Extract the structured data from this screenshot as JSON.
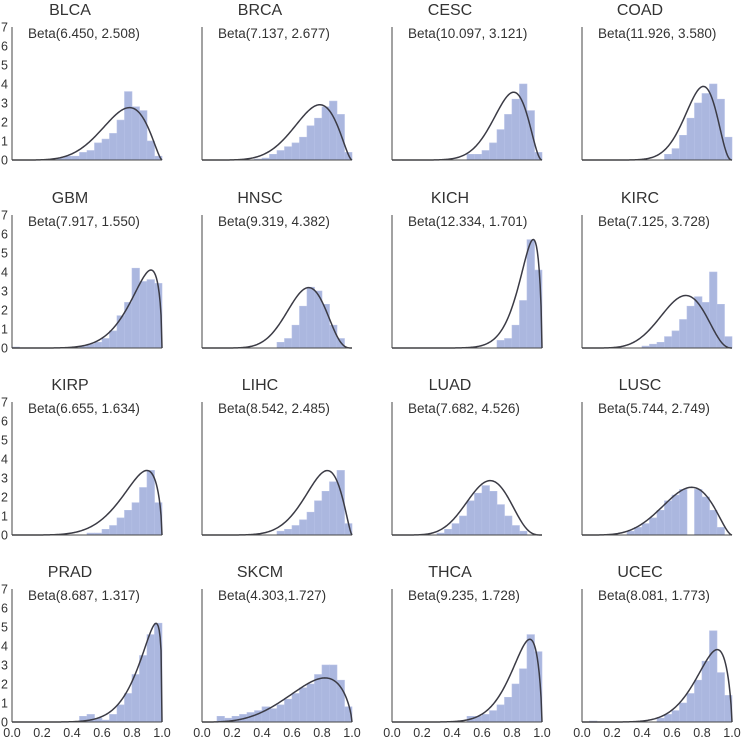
{
  "chart_data": [
    {
      "type": "bar",
      "title": "BLCA",
      "annotation": "Beta(6.450, 2.508)",
      "alpha": 6.45,
      "beta": 2.508,
      "bins": {
        "start": 0.0,
        "width": 0.05,
        "values": [
          0,
          0,
          0,
          0,
          0,
          0,
          0.1,
          0.2,
          0.2,
          0.4,
          0.5,
          0.9,
          1.1,
          1.4,
          2.1,
          3.6,
          2.8,
          2.6,
          1.0,
          0.2
        ]
      },
      "ylim": [
        0,
        7
      ],
      "xlim": [
        0,
        1
      ],
      "xticks": [],
      "yticks": [
        "0",
        "1",
        "2",
        "3",
        "4",
        "5",
        "6",
        "7"
      ]
    },
    {
      "type": "bar",
      "title": "BRCA",
      "annotation": "Beta(7.137, 2.677)",
      "alpha": 7.137,
      "beta": 2.677,
      "bins": {
        "start": 0.0,
        "width": 0.05,
        "values": [
          0,
          0,
          0,
          0,
          0,
          0,
          0,
          0.05,
          0.1,
          0.3,
          0.5,
          0.7,
          0.9,
          1.2,
          1.8,
          2.2,
          2.8,
          3.1,
          2.4,
          0.4
        ]
      },
      "ylim": [
        0,
        7
      ],
      "xlim": [
        0,
        1
      ],
      "xticks": [],
      "yticks": []
    },
    {
      "type": "bar",
      "title": "CESC",
      "annotation": "Beta(10.097, 3.121)",
      "alpha": 10.097,
      "beta": 3.121,
      "bins": {
        "start": 0.0,
        "width": 0.05,
        "values": [
          0,
          0,
          0,
          0,
          0,
          0,
          0,
          0,
          0,
          0,
          0.3,
          0.3,
          0.5,
          0.9,
          1.6,
          2.4,
          3.2,
          4.0,
          2.6,
          0.4
        ]
      },
      "ylim": [
        0,
        7
      ],
      "xlim": [
        0,
        1
      ],
      "xticks": [],
      "yticks": []
    },
    {
      "type": "bar",
      "title": "COAD",
      "annotation": "Beta(11.926, 3.580)",
      "alpha": 11.926,
      "beta": 3.58,
      "bins": {
        "start": 0.0,
        "width": 0.05,
        "values": [
          0,
          0,
          0,
          0,
          0,
          0,
          0,
          0,
          0,
          0,
          0,
          0.3,
          0.6,
          1.3,
          2.2,
          3.0,
          3.5,
          4.0,
          3.2,
          1.2
        ]
      },
      "ylim": [
        0,
        7
      ],
      "xlim": [
        0,
        1
      ],
      "xticks": [],
      "yticks": []
    },
    {
      "type": "bar",
      "title": "GBM",
      "annotation": "Beta(7.917, 1.550)",
      "alpha": 7.917,
      "beta": 1.55,
      "bins": {
        "start": 0.0,
        "width": 0.05,
        "values": [
          0.05,
          0,
          0,
          0,
          0,
          0,
          0,
          0,
          0,
          0.1,
          0.2,
          0.3,
          0.5,
          0.9,
          1.7,
          2.4,
          4.2,
          3.5,
          3.6,
          3.4
        ]
      },
      "ylim": [
        0,
        7
      ],
      "xlim": [
        0,
        1
      ],
      "xticks": [],
      "yticks": [
        "0",
        "1",
        "2",
        "3",
        "4",
        "5",
        "6",
        "7"
      ]
    },
    {
      "type": "bar",
      "title": "HNSC",
      "annotation": "Beta(9.319, 4.382)",
      "alpha": 9.319,
      "beta": 4.382,
      "bins": {
        "start": 0.0,
        "width": 0.05,
        "values": [
          0,
          0,
          0,
          0,
          0,
          0,
          0,
          0,
          0,
          0,
          0.3,
          0.5,
          1.2,
          2.2,
          3.2,
          3.0,
          2.3,
          1.2,
          0.5,
          0
        ]
      },
      "ylim": [
        0,
        7
      ],
      "xlim": [
        0,
        1
      ],
      "xticks": [],
      "yticks": []
    },
    {
      "type": "bar",
      "title": "KICH",
      "annotation": "Beta(12.334, 1.701)",
      "alpha": 12.334,
      "beta": 1.701,
      "bins": {
        "start": 0.0,
        "width": 0.05,
        "values": [
          0,
          0,
          0,
          0,
          0,
          0,
          0,
          0,
          0,
          0,
          0,
          0,
          0,
          0,
          0.4,
          0.5,
          1.2,
          2.5,
          5.7,
          4.1
        ]
      },
      "ylim": [
        0,
        7
      ],
      "xlim": [
        0,
        1
      ],
      "xticks": [],
      "yticks": []
    },
    {
      "type": "bar",
      "title": "KIRC",
      "annotation": "Beta(7.125, 3.728)",
      "alpha": 7.125,
      "beta": 3.728,
      "bins": {
        "start": 0.0,
        "width": 0.05,
        "values": [
          0,
          0,
          0,
          0,
          0,
          0,
          0,
          0,
          0.1,
          0.2,
          0.3,
          0.6,
          0.9,
          1.5,
          2.2,
          2.7,
          2.4,
          4.0,
          2.3,
          0.6
        ]
      },
      "ylim": [
        0,
        7
      ],
      "xlim": [
        0,
        1
      ],
      "xticks": [],
      "yticks": []
    },
    {
      "type": "bar",
      "title": "KIRP",
      "annotation": "Beta(6.655, 1.634)",
      "alpha": 6.655,
      "beta": 1.634,
      "bins": {
        "start": 0.0,
        "width": 0.05,
        "values": [
          0,
          0,
          0,
          0,
          0,
          0,
          0,
          0,
          0,
          0,
          0.1,
          0.1,
          0.3,
          0.5,
          0.9,
          1.3,
          1.7,
          2.5,
          3.4,
          1.7
        ]
      },
      "ylim": [
        0,
        7
      ],
      "xlim": [
        0,
        1
      ],
      "xticks": [],
      "yticks": [
        "0",
        "1",
        "2",
        "3",
        "4",
        "5",
        "6",
        "7"
      ]
    },
    {
      "type": "bar",
      "title": "LIHC",
      "annotation": "Beta(8.542, 2.485)",
      "alpha": 8.542,
      "beta": 2.485,
      "bins": {
        "start": 0.0,
        "width": 0.05,
        "values": [
          0,
          0,
          0,
          0,
          0,
          0,
          0,
          0,
          0,
          0,
          0.2,
          0.3,
          0.5,
          0.8,
          1.2,
          1.8,
          2.3,
          2.8,
          3.4,
          0.6
        ]
      },
      "ylim": [
        0,
        7
      ],
      "xlim": [
        0,
        1
      ],
      "xticks": [],
      "yticks": []
    },
    {
      "type": "bar",
      "title": "LUAD",
      "annotation": "Beta(7.682, 4.526)",
      "alpha": 7.682,
      "beta": 4.526,
      "bins": {
        "start": 0.0,
        "width": 0.05,
        "values": [
          0,
          0,
          0,
          0,
          0,
          0,
          0.1,
          0.3,
          0.6,
          1.0,
          1.8,
          2.2,
          2.6,
          2.3,
          1.6,
          1.0,
          0.5,
          0.2,
          0,
          0
        ]
      },
      "ylim": [
        0,
        7
      ],
      "xlim": [
        0,
        1
      ],
      "xticks": [],
      "yticks": []
    },
    {
      "type": "bar",
      "title": "LUSC",
      "annotation": "Beta(5.744, 2.749)",
      "alpha": 5.744,
      "beta": 2.749,
      "bins": {
        "start": 0.0,
        "width": 0.05,
        "values": [
          0,
          0,
          0,
          0,
          0,
          0,
          0.2,
          0.4,
          0.6,
          0.9,
          1.3,
          1.8,
          2.1,
          2.4,
          0,
          2.4,
          2.0,
          1.3,
          0.4,
          0
        ]
      },
      "ylim": [
        0,
        7
      ],
      "xlim": [
        0,
        1
      ],
      "xticks": [],
      "yticks": []
    },
    {
      "type": "bar",
      "title": "PRAD",
      "annotation": "Beta(8.687, 1.317)",
      "alpha": 8.687,
      "beta": 1.317,
      "bins": {
        "start": 0.0,
        "width": 0.05,
        "values": [
          0,
          0,
          0,
          0,
          0,
          0,
          0,
          0,
          0,
          0.3,
          0.4,
          0.2,
          0.1,
          0.4,
          0.9,
          1.5,
          2.5,
          3.5,
          4.6,
          5.2
        ]
      },
      "ylim": [
        0,
        7
      ],
      "xlim": [
        0,
        1
      ],
      "xticks": [
        "0.0",
        "0.2",
        "0.4",
        "0.6",
        "0.8",
        "1.0"
      ],
      "yticks": [
        "0",
        "1",
        "2",
        "3",
        "4",
        "5",
        "6",
        "7"
      ]
    },
    {
      "type": "bar",
      "title": "SKCM",
      "annotation": "Beta(4.303,1.727)",
      "alpha": 4.303,
      "beta": 1.727,
      "bins": {
        "start": 0.0,
        "width": 0.05,
        "values": [
          0,
          0,
          0.3,
          0.2,
          0.3,
          0.4,
          0.5,
          0.6,
          0.8,
          0.7,
          0.9,
          1.2,
          1.5,
          1.8,
          2.0,
          2.5,
          3.0,
          3.0,
          2.2,
          0.8
        ]
      },
      "ylim": [
        0,
        7
      ],
      "xlim": [
        0,
        1
      ],
      "xticks": [
        "0.0",
        "0.2",
        "0.4",
        "0.6",
        "0.8",
        "1.0"
      ],
      "yticks": []
    },
    {
      "type": "bar",
      "title": "THCA",
      "annotation": "Beta(9.235, 1.728)",
      "alpha": 9.235,
      "beta": 1.728,
      "bins": {
        "start": 0.0,
        "width": 0.05,
        "values": [
          0,
          0,
          0,
          0,
          0,
          0,
          0,
          0,
          0,
          0,
          0.3,
          0.3,
          0.4,
          0.6,
          0.9,
          1.3,
          2.0,
          2.8,
          4.6,
          3.7
        ]
      },
      "ylim": [
        0,
        7
      ],
      "xlim": [
        0,
        1
      ],
      "xticks": [
        "0.0",
        "0.2",
        "0.4",
        "0.6",
        "0.8",
        "1.0"
      ],
      "yticks": []
    },
    {
      "type": "bar",
      "title": "UCEC",
      "annotation": "Beta(8.081, 1.773)",
      "alpha": 8.081,
      "beta": 1.773,
      "bins": {
        "start": 0.0,
        "width": 0.05,
        "values": [
          0,
          0.05,
          0,
          0,
          0,
          0,
          0,
          0,
          0,
          0,
          0.2,
          0.4,
          0.6,
          1.0,
          1.5,
          2.2,
          3.2,
          4.8,
          2.6,
          1.4
        ]
      },
      "ylim": [
        0,
        7
      ],
      "xlim": [
        0,
        1
      ],
      "xticks": [
        "0.0",
        "0.2",
        "0.4",
        "0.6",
        "0.8",
        "1.0"
      ],
      "yticks": []
    }
  ]
}
